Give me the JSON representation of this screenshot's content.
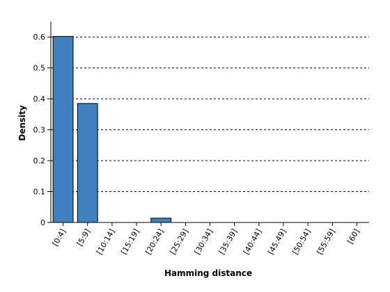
{
  "chart_data": {
    "type": "bar",
    "title": "",
    "xlabel": "Hamming distance",
    "ylabel": "Density",
    "categories": [
      "[0:4]",
      "[5:9]",
      "[10:14]",
      "[15:19]",
      "[20:24]",
      "[25:29]",
      "[30:34]",
      "[35:39]",
      "[40:44]",
      "[45:49]",
      "[50:54]",
      "[55:59]",
      "[60]"
    ],
    "values": [
      0.602,
      0.385,
      0,
      0,
      0.014,
      0,
      0,
      0,
      0,
      0,
      0,
      0,
      0
    ],
    "yticks": [
      "0",
      "0.1",
      "0.2",
      "0.3",
      "0.4",
      "0.5",
      "0.6"
    ],
    "ylim": [
      0,
      0.65
    ],
    "grid": "horizontal dashed",
    "legend": "none",
    "bar_color": "#4080c0"
  }
}
